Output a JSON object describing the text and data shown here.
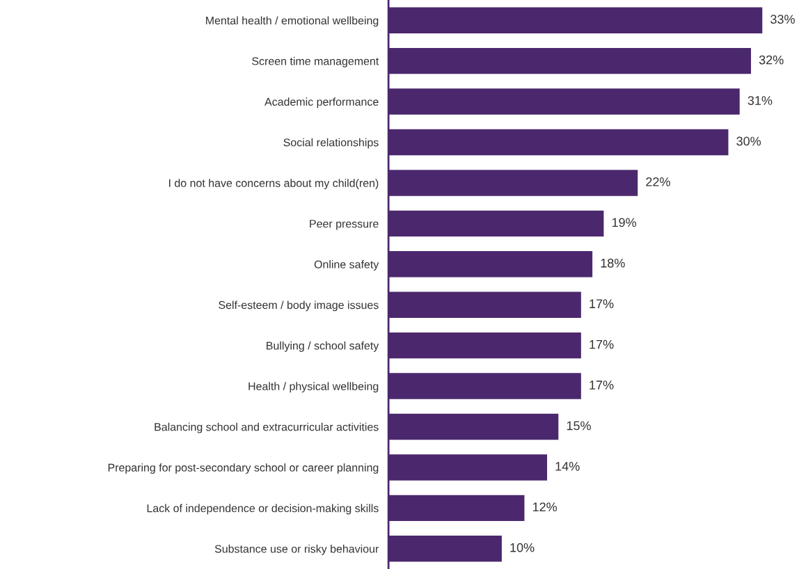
{
  "chart_data": {
    "type": "bar",
    "orientation": "horizontal",
    "categories": [
      "Mental health / emotional wellbeing",
      "Screen time management",
      "Academic performance",
      "Social relationships",
      "I do not have concerns about my child(ren)",
      "Peer pressure",
      "Online safety",
      "Self-esteem / body image issues",
      "Bullying / school safety",
      "Health / physical wellbeing",
      "Balancing school and extracurricular activities",
      "Preparing for post-secondary school or career planning",
      "Lack of independence or decision-making skills",
      "Substance use or risky behaviour"
    ],
    "values": [
      33,
      32,
      31,
      30,
      22,
      19,
      18,
      17,
      17,
      17,
      15,
      14,
      12,
      10
    ],
    "value_labels": [
      "33%",
      "32%",
      "31%",
      "30%",
      "22%",
      "19%",
      "18%",
      "17%",
      "17%",
      "17%",
      "15%",
      "14%",
      "12%",
      "10%"
    ],
    "color": "#4b286d",
    "grid": false,
    "legend": false,
    "tick_labels": "y"
  }
}
